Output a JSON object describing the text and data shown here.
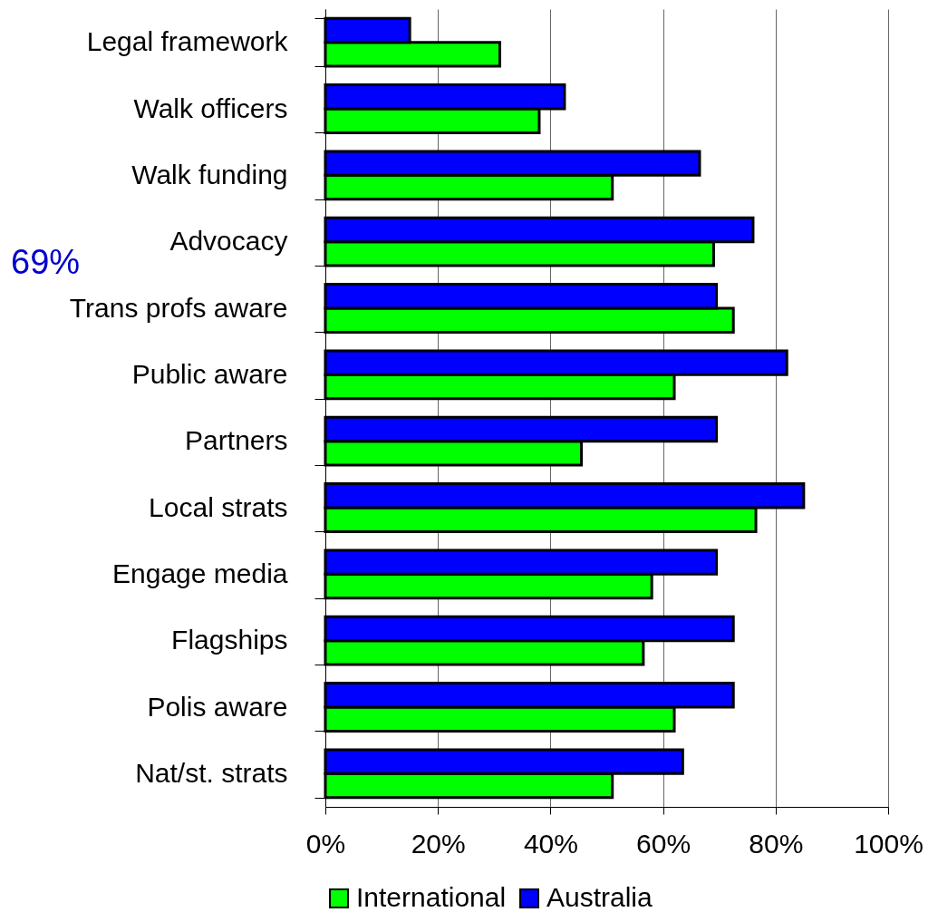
{
  "chart_data": {
    "type": "bar",
    "orientation": "horizontal",
    "categories": [
      "Legal framework",
      "Walk officers",
      "Walk funding",
      "Advocacy",
      "Trans profs aware",
      "Public aware",
      "Partners",
      "Local strats",
      "Engage media",
      "Flagships",
      "Polis aware ",
      "Nat/st. strats"
    ],
    "series": [
      {
        "name": "International",
        "color": "#00ff00",
        "values": [
          31,
          38,
          51,
          69,
          72.5,
          62,
          45.5,
          76.5,
          58,
          56.5,
          62,
          51
        ]
      },
      {
        "name": "Australia",
        "color": "#0000ff",
        "values": [
          15,
          42.5,
          66.5,
          76,
          69.5,
          82,
          69.5,
          85,
          69.5,
          72.5,
          72.5,
          63.5
        ]
      }
    ],
    "xlim": [
      0,
      100
    ],
    "xticks": [
      {
        "value": 0,
        "label": "0%"
      },
      {
        "value": 20,
        "label": "20%"
      },
      {
        "value": 40,
        "label": "40%"
      },
      {
        "value": 60,
        "label": "60%"
      },
      {
        "value": 80,
        "label": "80%"
      },
      {
        "value": 100,
        "label": "100%"
      }
    ],
    "grid": "x",
    "legend": "bottom",
    "annotations": [
      "69%"
    ]
  }
}
